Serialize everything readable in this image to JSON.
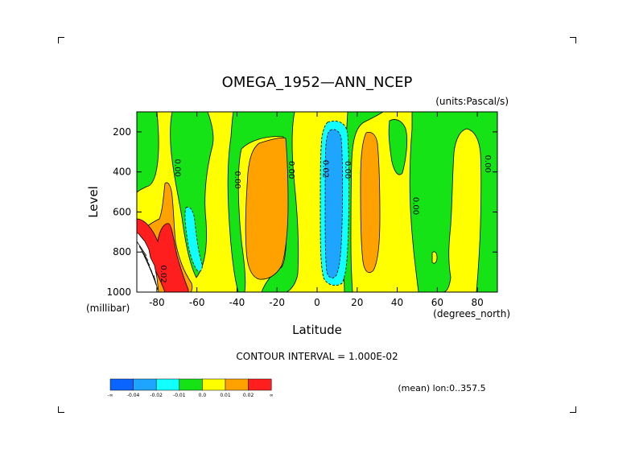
{
  "chart_data": {
    "type": "contour",
    "title": "OMEGA_1952—ANN_NCEP",
    "units_label": "(units:Pascal/s)",
    "xlabel": "Latitude",
    "ylabel": "Level",
    "x_unit_label": "(degrees_north)",
    "y_unit_label": "(millibar)",
    "xlim": [
      -90,
      90
    ],
    "ylim": [
      1000,
      100
    ],
    "x_ticks": [
      -80,
      -60,
      -40,
      -20,
      0,
      20,
      40,
      60,
      80
    ],
    "x_tick_labels": [
      "-80",
      "-60",
      "-40",
      "-20",
      "0",
      "20",
      "40",
      "60",
      "80"
    ],
    "y_ticks": [
      200,
      400,
      600,
      800,
      1000
    ],
    "y_tick_labels": [
      "200",
      "400",
      "600",
      "800",
      "1000"
    ],
    "contour_interval_text": "CONTOUR INTERVAL = 1.000E-02",
    "mean_text": "(mean) lon:0..357.5",
    "levels": [
      -0.04,
      -0.02,
      -0.01,
      0.0,
      0.01,
      0.02
    ],
    "colorbar": {
      "colors": [
        "#0a64ff",
        "#1ea5ff",
        "#12ffff",
        "#16e316",
        "#ffff00",
        "#ffa200",
        "#ff1e1e"
      ],
      "labels": [
        "-∞",
        "-0.04",
        "-0.02",
        "-0.01",
        "0.0",
        "0.01",
        "0.02",
        "∞"
      ]
    },
    "contour_labels": [
      {
        "text": "0.00",
        "lat": -71,
        "level": 380
      },
      {
        "text": "0.00",
        "lat": -41,
        "level": 440
      },
      {
        "text": "0.00",
        "lat": -14,
        "level": 390
      },
      {
        "text": "0.02",
        "lat": 3,
        "level": 385
      },
      {
        "text": "0.00",
        "lat": 14,
        "level": 390
      },
      {
        "text": "0.00",
        "lat": 48,
        "level": 570
      },
      {
        "text": "0.00",
        "lat": 84,
        "level": 360
      },
      {
        "text": "0.02",
        "lat": -78,
        "level": 910
      }
    ],
    "regions": [
      {
        "name": "background",
        "value": 0.005,
        "color": "#ffff00"
      },
      {
        "name": "green-high-latitudes-south",
        "value": -0.005,
        "color": "#16e316"
      },
      {
        "name": "green-midlat-south",
        "value": -0.005,
        "color": "#16e316"
      },
      {
        "name": "green-subtropics-south",
        "value": -0.005,
        "color": "#16e316"
      },
      {
        "name": "green-subtropics-north",
        "value": -0.005,
        "color": "#16e316"
      },
      {
        "name": "green-high-latitudes-north",
        "value": -0.005,
        "color": "#16e316"
      },
      {
        "name": "orange-descent-south",
        "value": 0.015,
        "color": "#ffa200"
      },
      {
        "name": "orange-descent-north",
        "value": 0.015,
        "color": "#ffa200"
      },
      {
        "name": "orange-antarctic",
        "value": 0.015,
        "color": "#ffa200"
      },
      {
        "name": "red-antarctic",
        "value": 0.025,
        "color": "#ff1e1e"
      },
      {
        "name": "cyan-itcz",
        "value": -0.015,
        "color": "#12ffff"
      },
      {
        "name": "blue-itcz",
        "value": -0.03,
        "color": "#1ea5ff"
      },
      {
        "name": "cyan-southern-ocean",
        "value": -0.015,
        "color": "#12ffff"
      },
      {
        "name": "masked-topography",
        "value": null,
        "color": "#ffffff"
      }
    ]
  }
}
